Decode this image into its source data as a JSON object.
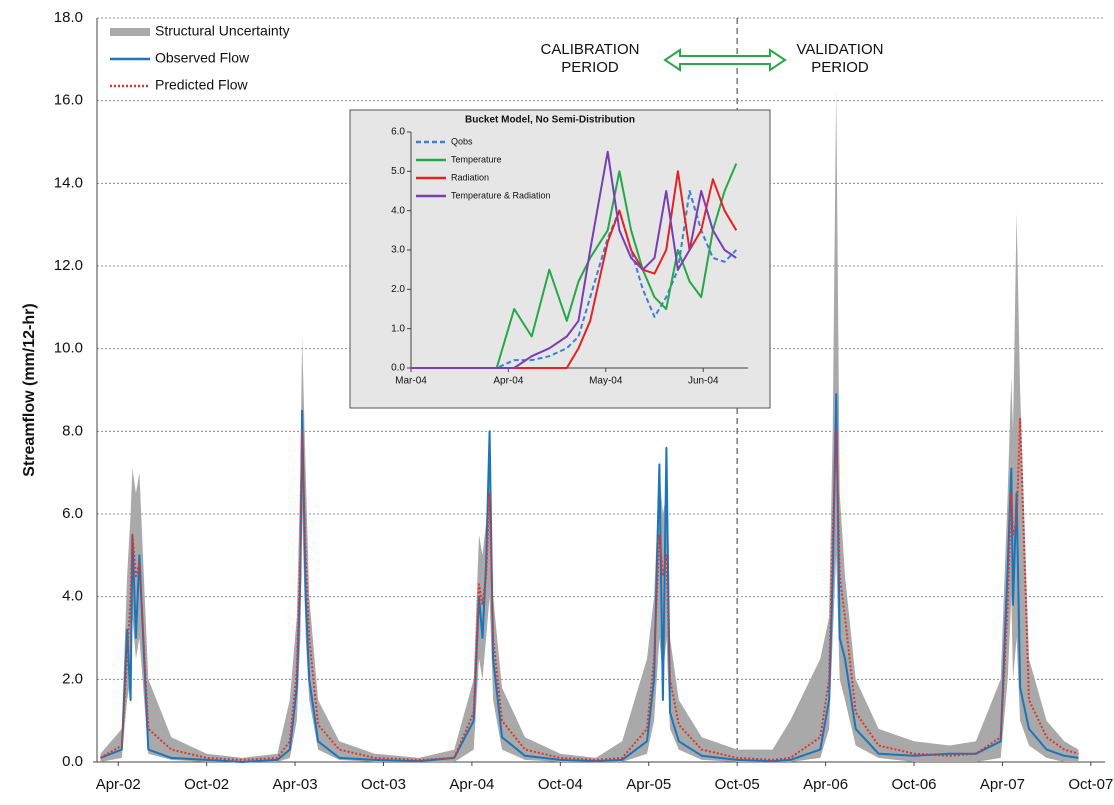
{
  "chart_data": [
    {
      "type": "line",
      "y_label": "Streamflow (mm/12-hr)",
      "xlim": [
        2002.13,
        2007.83
      ],
      "xticks": [
        {
          "value": 2002.25,
          "label": "Apr-02"
        },
        {
          "value": 2002.75,
          "label": "Oct-02"
        },
        {
          "value": 2003.25,
          "label": "Apr-03"
        },
        {
          "value": 2003.75,
          "label": "Oct-03"
        },
        {
          "value": 2004.25,
          "label": "Apr-04"
        },
        {
          "value": 2004.75,
          "label": "Oct-04"
        },
        {
          "value": 2005.25,
          "label": "Apr-05"
        },
        {
          "value": 2005.75,
          "label": "Oct-05"
        },
        {
          "value": 2006.25,
          "label": "Apr-06"
        },
        {
          "value": 2006.75,
          "label": "Oct-06"
        },
        {
          "value": 2007.25,
          "label": "Apr-07"
        },
        {
          "value": 2007.75,
          "label": "Oct-07"
        }
      ],
      "ylim": [
        0,
        18
      ],
      "yticks": [
        {
          "value": 0,
          "label": "0.0"
        },
        {
          "value": 2,
          "label": "2.0"
        },
        {
          "value": 4,
          "label": "4.0"
        },
        {
          "value": 6,
          "label": "6.0"
        },
        {
          "value": 8,
          "label": "8.0"
        },
        {
          "value": 10,
          "label": "10.0"
        },
        {
          "value": 12,
          "label": "12.0"
        },
        {
          "value": 14,
          "label": "14.0"
        },
        {
          "value": 16,
          "label": "16.0"
        },
        {
          "value": 18,
          "label": "18.0"
        }
      ],
      "grid": true,
      "divider": 2005.75,
      "annotations": [
        {
          "lines": [
            "CALIBRATION",
            "PERIOD"
          ]
        },
        {
          "lines": [
            "VALIDATION",
            "PERIOD"
          ]
        }
      ],
      "x": [
        2002.15,
        2002.27,
        2002.3,
        2002.32,
        2002.33,
        2002.35,
        2002.37,
        2002.42,
        2002.55,
        2002.75,
        2002.95,
        2003.15,
        2003.22,
        2003.26,
        2003.28,
        2003.29,
        2003.31,
        2003.33,
        2003.38,
        2003.5,
        2003.7,
        2003.95,
        2004.15,
        2004.26,
        2004.29,
        2004.31,
        2004.33,
        2004.35,
        2004.37,
        2004.42,
        2004.55,
        2004.75,
        2004.95,
        2005.1,
        2005.24,
        2005.28,
        2005.31,
        2005.33,
        2005.35,
        2005.37,
        2005.42,
        2005.55,
        2005.75,
        2005.95,
        2006.05,
        2006.22,
        2006.27,
        2006.29,
        2006.31,
        2006.33,
        2006.36,
        2006.42,
        2006.55,
        2006.75,
        2006.95,
        2007.1,
        2007.24,
        2007.28,
        2007.3,
        2007.31,
        2007.33,
        2007.35,
        2007.4,
        2007.5,
        2007.6,
        2007.68
      ],
      "series": [
        {
          "name": "Structural Uncertainty",
          "type": "area",
          "color": "#a9a9a9",
          "values": [
            0.2,
            0.8,
            4.5,
            6.0,
            7.1,
            6.5,
            7.0,
            2.0,
            0.6,
            0.2,
            0.1,
            0.2,
            1.5,
            3.5,
            7.0,
            10.3,
            7.0,
            4.0,
            1.5,
            0.5,
            0.2,
            0.1,
            0.3,
            2.0,
            5.5,
            5.0,
            5.8,
            7.0,
            4.0,
            1.8,
            0.6,
            0.2,
            0.1,
            0.5,
            2.5,
            4.0,
            7.0,
            6.0,
            6.5,
            3.0,
            1.5,
            0.6,
            0.3,
            0.3,
            1.0,
            2.5,
            3.5,
            8.0,
            16.3,
            6.5,
            4.5,
            2.0,
            0.8,
            0.5,
            0.4,
            0.5,
            2.0,
            6.5,
            9.3,
            8.0,
            13.3,
            9.0,
            2.5,
            1.0,
            0.5,
            0.3
          ],
          "lower": [
            0,
            0.1,
            1.5,
            2.0,
            3.5,
            2.5,
            3.0,
            0.2,
            0.05,
            0,
            0,
            0,
            0.1,
            1.0,
            3.0,
            6.0,
            3.0,
            1.5,
            0.3,
            0.05,
            0,
            0,
            0,
            0.3,
            2.5,
            2.0,
            3.0,
            4.0,
            1.5,
            0.3,
            0.05,
            0,
            0,
            0,
            0.2,
            1.0,
            3.0,
            2.0,
            3.0,
            0.8,
            0.3,
            0.05,
            0,
            0,
            0,
            0.1,
            0.8,
            3.0,
            5.0,
            2.0,
            1.5,
            0.4,
            0.1,
            0,
            0,
            0,
            0.1,
            2.0,
            4.0,
            2.0,
            3.0,
            1.0,
            0.4,
            0.1,
            0,
            0
          ]
        },
        {
          "name": "Observed Flow",
          "color": "#1b75bb",
          "line_style": "solid",
          "values": [
            0.1,
            0.3,
            3.2,
            1.5,
            5.5,
            3.0,
            5.0,
            0.3,
            0.1,
            0.05,
            0,
            0.05,
            0.3,
            1.8,
            4.5,
            8.5,
            4.0,
            2.0,
            0.5,
            0.1,
            0.05,
            0.02,
            0.1,
            1.0,
            4.0,
            3.0,
            4.8,
            8.0,
            2.5,
            0.6,
            0.15,
            0.05,
            0.02,
            0.05,
            0.5,
            2.0,
            7.2,
            1.5,
            7.6,
            1.2,
            0.5,
            0.15,
            0.05,
            0.02,
            0.05,
            0.3,
            1.5,
            4.5,
            8.9,
            3.0,
            2.5,
            0.8,
            0.2,
            0.15,
            0.2,
            0.2,
            0.5,
            4.7,
            7.1,
            3.8,
            6.5,
            1.8,
            0.8,
            0.3,
            0.15,
            0.1
          ]
        },
        {
          "name": "Predicted Flow",
          "color": "#e2332b",
          "line_style": "dotted",
          "values": [
            0.1,
            0.4,
            2.5,
            4.0,
            5.5,
            4.5,
            4.8,
            0.8,
            0.3,
            0.1,
            0.05,
            0.1,
            0.5,
            2.2,
            5.0,
            8.0,
            5.0,
            3.0,
            0.9,
            0.3,
            0.1,
            0.05,
            0.1,
            1.2,
            4.3,
            3.8,
            4.5,
            6.5,
            3.0,
            1.0,
            0.3,
            0.1,
            0.05,
            0.1,
            0.8,
            2.5,
            5.5,
            4.5,
            5.0,
            2.0,
            0.9,
            0.3,
            0.1,
            0.05,
            0.1,
            0.6,
            2.0,
            5.5,
            8.0,
            4.5,
            3.5,
            1.2,
            0.4,
            0.2,
            0.15,
            0.2,
            0.6,
            3.8,
            6.5,
            5.5,
            5.8,
            8.3,
            1.5,
            0.6,
            0.3,
            0.2
          ]
        }
      ]
    },
    {
      "type": "line",
      "title": "Bucket Model, No Semi-Distribution",
      "xlim": [
        2004.1667,
        2004.455
      ],
      "xticks": [
        {
          "value": 2004.1667,
          "label": "Mar-04"
        },
        {
          "value": 2004.25,
          "label": "Apr-04"
        },
        {
          "value": 2004.3333,
          "label": "May-04"
        },
        {
          "value": 2004.4167,
          "label": "Jun-04"
        }
      ],
      "ylim": [
        0,
        6
      ],
      "yticks": [
        {
          "value": 0,
          "label": "0.0"
        },
        {
          "value": 1,
          "label": "1.0"
        },
        {
          "value": 2,
          "label": "2.0"
        },
        {
          "value": 3,
          "label": "3.0"
        },
        {
          "value": 4,
          "label": "4.0"
        },
        {
          "value": 5,
          "label": "5.0"
        },
        {
          "value": 6,
          "label": "6.0"
        }
      ],
      "grid": false,
      "x": [
        2004.167,
        2004.24,
        2004.255,
        2004.27,
        2004.285,
        2004.3,
        2004.31,
        2004.32,
        2004.335,
        2004.345,
        2004.355,
        2004.365,
        2004.375,
        2004.385,
        2004.395,
        2004.405,
        2004.415,
        2004.425,
        2004.435,
        2004.445
      ],
      "series": [
        {
          "name": "Qobs",
          "color": "#3b7fd6",
          "line_style": "dashed",
          "values": [
            0,
            0,
            0.2,
            0.2,
            0.3,
            0.5,
            0.8,
            1.8,
            3.3,
            4.0,
            3.0,
            2.0,
            1.3,
            1.8,
            2.5,
            4.5,
            3.5,
            2.8,
            2.7,
            3.0
          ]
        },
        {
          "name": "Temperature",
          "color": "#23a84a",
          "line_style": "solid",
          "values": [
            0,
            0,
            1.5,
            0.8,
            2.5,
            1.2,
            2.2,
            2.8,
            3.5,
            5.0,
            3.5,
            2.5,
            1.8,
            1.5,
            3.0,
            2.2,
            1.8,
            3.5,
            4.5,
            5.2
          ]
        },
        {
          "name": "Radiation",
          "color": "#e42222",
          "line_style": "solid",
          "values": [
            0,
            0,
            0,
            0,
            0,
            0,
            0.5,
            1.2,
            3.2,
            4.0,
            3.0,
            2.5,
            2.4,
            3.0,
            5.0,
            3.0,
            3.5,
            4.8,
            4.0,
            3.5
          ]
        },
        {
          "name": "Temperature & Radiation",
          "color": "#7a3db5",
          "line_style": "solid",
          "values": [
            0,
            0,
            0,
            0.3,
            0.5,
            0.8,
            1.2,
            3.0,
            5.5,
            3.5,
            2.8,
            2.5,
            2.8,
            4.5,
            2.5,
            3.0,
            4.5,
            3.5,
            3.0,
            2.8
          ]
        }
      ]
    }
  ]
}
